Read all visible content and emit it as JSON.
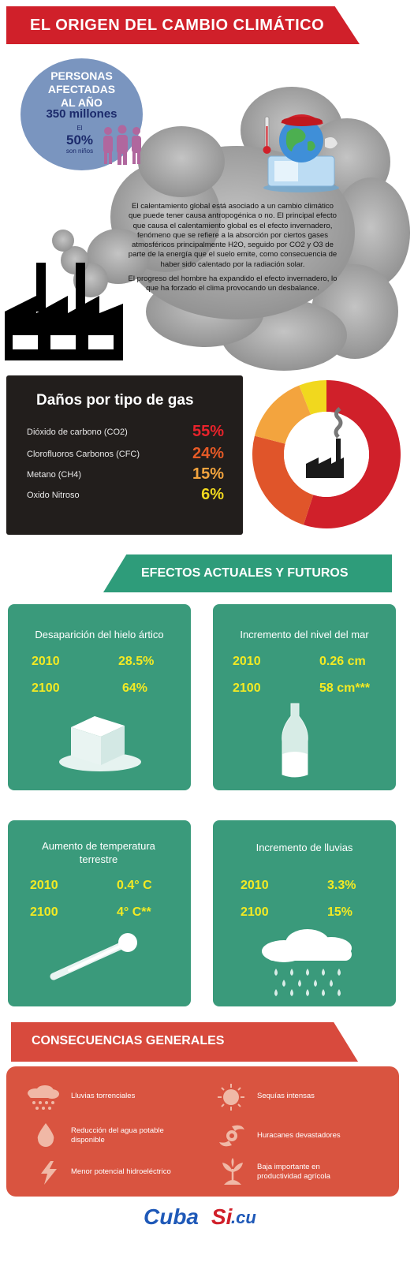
{
  "header": {
    "title": "EL ORIGEN DEL  CAMBIO CLIMÁTICO"
  },
  "stats": {
    "line1": "PERSONAS",
    "line2": "AFECTADAS",
    "line3": "AL AÑO",
    "people": "350 millones",
    "the": "El",
    "percent": "50%",
    "children": "son niños"
  },
  "intro": {
    "p1": "El calentamiento global está asociado a un cambio climático que puede tener causa antropogénica o no. El principal efecto que causa el calentamiento global es el efecto invernadero, fenómeno que se refiere a la absorción por ciertos gases atmosféricos principalmente H2O, seguido por CO2 y O3 de parte de la energía que el suelo emite, como consecuencia de haber sido calentado por la radiación solar.",
    "p2": "El progreso del hombre ha expandido el efecto invernadero, lo que ha forzado el clima provocando un desbalance."
  },
  "gases": {
    "title": "Daños por tipo de gas",
    "items": [
      {
        "name": "Dióxido de carbono (CO2)",
        "pct": "55%",
        "value": 55,
        "color": "#d0202a"
      },
      {
        "name": "Clorofluoros Carbonos (CFC)",
        "pct": "24%",
        "value": 24,
        "color": "#e0552a"
      },
      {
        "name": "Metano (CH4)",
        "pct": "15%",
        "value": 15,
        "color": "#f3a43e"
      },
      {
        "name": "Oxido Nitroso",
        "pct": "6%",
        "value": 6,
        "color": "#f1d81e"
      }
    ]
  },
  "effects": {
    "title": "EFECTOS ACTUALES Y FUTUROS",
    "cards": [
      {
        "title": "Desaparición del hielo ártico",
        "y1": "2010",
        "v1": "28.5%",
        "y2": "2100",
        "v2": "64%"
      },
      {
        "title": "Incremento del nivel del mar",
        "y1": "2010",
        "v1": "0.26 cm",
        "y2": "2100",
        "v2": "58 cm***"
      },
      {
        "title": "Aumento de temperatura terrestre",
        "y1": "2010",
        "v1": "0.4° C",
        "y2": "2100",
        "v2": "4° C**"
      },
      {
        "title": "Incremento de lluvias",
        "y1": "2010",
        "v1": "3.3%",
        "y2": "2100",
        "v2": "15%"
      }
    ]
  },
  "consequences": {
    "title": "CONSECUENCIAS GENERALES",
    "items": [
      "Lluvias torrenciales",
      "Reducción del agua potable disponible",
      "Menor potencial hidroeléctrico",
      "Sequías intensas",
      "Huracanes devastadores",
      "Baja importante en productividad agrícola"
    ]
  },
  "logo": {
    "part1": "Cuba",
    "part2": "Si",
    "part3": ".cu"
  },
  "colors": {
    "red": "#d0202a",
    "green": "#3a9a7b",
    "yellow": "#f3ea23",
    "dark": "#221e1c"
  }
}
